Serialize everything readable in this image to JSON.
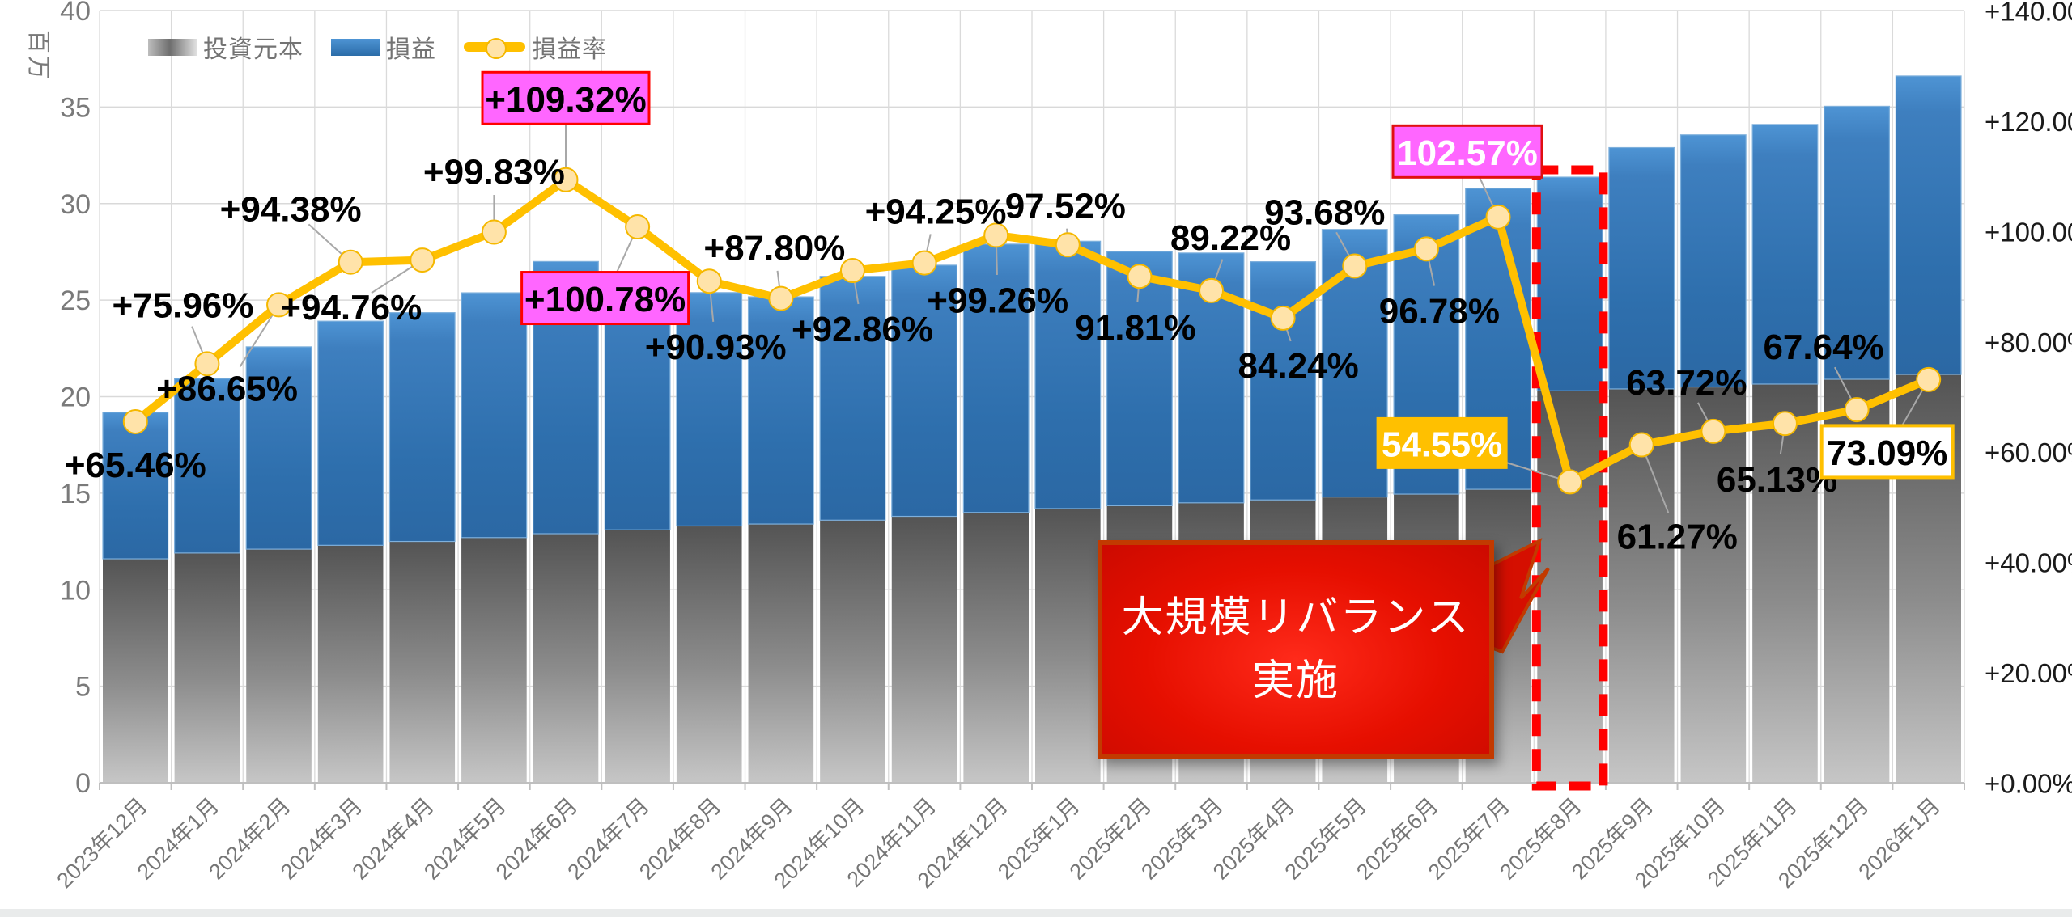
{
  "legend": {
    "items": [
      {
        "label": "投資元本",
        "swatch": "gray-gradient-bar"
      },
      {
        "label": "損益",
        "swatch": "blue-bar"
      },
      {
        "label": "損益率",
        "swatch": "yellow-line-marker"
      }
    ]
  },
  "chart_data": {
    "type": "combo-stacked-bar-line",
    "title": "",
    "y_left": {
      "title": "百万",
      "min": 0,
      "max": 40,
      "step": 5,
      "tick_labels": [
        "0",
        "5",
        "10",
        "15",
        "20",
        "25",
        "30",
        "35",
        "40"
      ]
    },
    "y_right": {
      "min": 0,
      "max": 140,
      "step": 20,
      "tick_labels": [
        "+0.00%",
        "+20.00%",
        "+40.00%",
        "+60.00%",
        "+80.00%",
        "+100.00%",
        "+120.00%",
        "+140.00%"
      ]
    },
    "categories": [
      "2023年12月",
      "2024年1月",
      "2024年2月",
      "2024年3月",
      "2024年4月",
      "2024年5月",
      "2024年6月",
      "2024年7月",
      "2024年8月",
      "2024年9月",
      "2024年10月",
      "2024年11月",
      "2024年12月",
      "2025年1月",
      "2025年2月",
      "2025年3月",
      "2025年4月",
      "2025年5月",
      "2025年6月",
      "2025年7月",
      "2025年8月",
      "2025年9月",
      "2025年10月",
      "2025年11月",
      "2025年12月",
      "2026年1月"
    ],
    "series": [
      {
        "name": "投資元本",
        "type": "bar",
        "stack": "a",
        "unit": "百万",
        "values": [
          11.6,
          11.9,
          12.1,
          12.3,
          12.5,
          12.7,
          12.9,
          13.1,
          13.3,
          13.4,
          13.6,
          13.8,
          14.0,
          14.2,
          14.35,
          14.5,
          14.65,
          14.8,
          14.95,
          15.2,
          20.3,
          20.4,
          20.5,
          20.65,
          20.9,
          21.15
        ]
      },
      {
        "name": "損益",
        "type": "bar",
        "stack": "a",
        "unit": "百万",
        "values": [
          7.59,
          9.04,
          10.48,
          11.61,
          11.85,
          12.68,
          14.1,
          13.2,
          12.09,
          11.77,
          12.63,
          13.01,
          13.9,
          13.85,
          13.17,
          12.94,
          12.34,
          13.86,
          14.47,
          15.59,
          11.07,
          12.5,
          13.06,
          13.45,
          14.14,
          15.46
        ]
      },
      {
        "name": "損益率",
        "type": "line",
        "axis": "right",
        "unit": "%",
        "values": [
          65.46,
          75.96,
          86.65,
          94.38,
          94.76,
          99.83,
          109.32,
          100.78,
          90.93,
          87.8,
          92.86,
          94.25,
          99.26,
          97.52,
          91.81,
          89.22,
          84.24,
          93.68,
          96.78,
          102.57,
          54.55,
          61.27,
          63.72,
          65.13,
          67.64,
          73.09
        ],
        "point_labels": [
          "+65.46%",
          "+75.96%",
          "+86.65%",
          "+94.38%",
          "+94.76%",
          "+99.83%",
          "+109.32%",
          "+100.78%",
          "+90.93%",
          "+87.80%",
          "+92.86%",
          "+94.25%",
          "+99.26%",
          "97.52%",
          "91.81%",
          "89.22%",
          "84.24%",
          "93.68%",
          "96.78%",
          "102.57%",
          "54.55%",
          "61.27%",
          "63.72%",
          "65.13%",
          "67.64%",
          "73.09%"
        ],
        "label_style_keys": [
          null,
          null,
          null,
          null,
          null,
          null,
          "pink-black",
          "pink-black",
          null,
          null,
          null,
          null,
          null,
          null,
          null,
          null,
          null,
          null,
          null,
          "pink-white",
          "gold",
          null,
          null,
          null,
          null,
          "white-gold"
        ],
        "label_offsets": [
          [
            0,
            52
          ],
          [
            -30,
            -74
          ],
          [
            -64,
            102
          ],
          [
            -74,
            -67
          ],
          [
            -88,
            57
          ],
          [
            0,
            -76
          ],
          [
            0,
            -101
          ],
          [
            -40,
            88
          ],
          [
            8,
            80
          ],
          [
            -8,
            -64
          ],
          [
            12,
            71
          ],
          [
            14,
            -65
          ],
          [
            2,
            79
          ],
          [
            -3,
            -50
          ],
          [
            -5,
            62
          ],
          [
            24,
            -67
          ],
          [
            19,
            57
          ],
          [
            -37,
            -68
          ],
          [
            16,
            75
          ],
          [
            -38,
            -81
          ],
          [
            -158,
            -48
          ],
          [
            44,
            112
          ],
          [
            -33,
            -62
          ],
          [
            -10,
            68
          ],
          [
            -41,
            -79
          ],
          [
            -51,
            89
          ]
        ],
        "leader_lines": [
          false,
          true,
          true,
          true,
          true,
          true,
          true,
          true,
          true,
          true,
          true,
          true,
          true,
          true,
          true,
          true,
          true,
          true,
          true,
          true,
          true,
          true,
          true,
          true,
          true,
          true
        ]
      }
    ],
    "label_styles": {
      "pink-black": {
        "bg": "#ff66ff",
        "border": "#ff0000",
        "text": "#000000"
      },
      "pink-white": {
        "bg": "#ff66ff",
        "border": "#e01010",
        "text": "#ffffff"
      },
      "gold": {
        "bg": "#ffc000",
        "border": "none",
        "text": "#ffffff"
      },
      "white-gold": {
        "bg": "#ffffff",
        "border": "#ffc000",
        "text": "#000000"
      }
    },
    "annotations": {
      "dashed_rect": {
        "category": "2025年8月",
        "color": "#ff0000"
      },
      "callout": {
        "lines": [
          "大規模リバランス",
          "実施"
        ],
        "bg": "#e60f00",
        "border": "#c23a00",
        "text_color": "#ffffff",
        "points_to": "2025年8月"
      }
    },
    "colors": {
      "bar_principal_top": "#545454",
      "bar_principal_bottom": "#c6c6c6",
      "bar_profit_top": "#4e94d4",
      "bar_profit_bottom": "#2b68a4",
      "line": "#ffc000",
      "marker_fill": "#ffe3a9",
      "marker_stroke": "#f5b800",
      "gridline": "#d9d9d9",
      "axis_line": "#bfbfbf",
      "leader": "#a8a8a8",
      "axis_text_left": "#7a7a7a",
      "axis_text_right": "#1a1a1a",
      "month_text": "#767676"
    },
    "layout_hints": {
      "legend_position": "top-left",
      "grid": true,
      "x_label_rotation": -45
    }
  }
}
